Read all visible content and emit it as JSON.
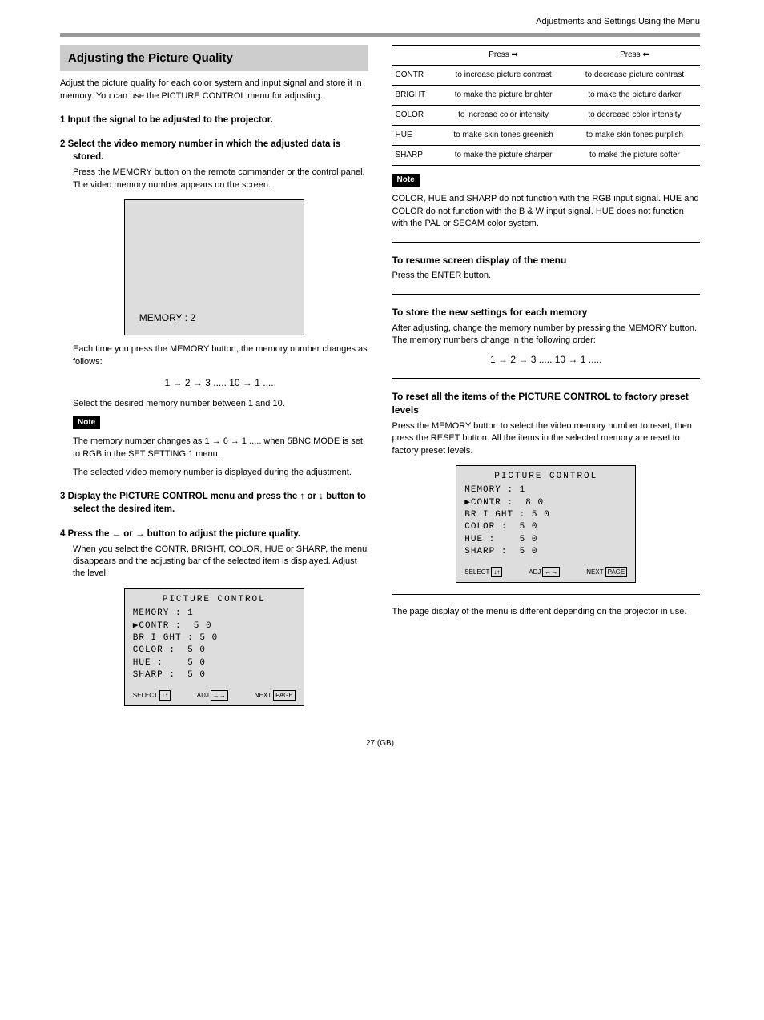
{
  "page_title": "Adjustments and Settings Using the Menu",
  "section_heading": "Adjusting the Picture Quality",
  "intro": "Adjust the picture quality for each color system and input signal and store it in memory. You can use the PICTURE CONTROL menu for adjusting.",
  "step1": "1  Input the signal to be adjusted to the projector.",
  "step2": "2  Select the video memory number in which the adjusted data is stored.",
  "step2_body1": "Press the MEMORY button on the remote commander or the control panel. The video memory number appears on the screen.",
  "screen1_text": "MEMORY : 2",
  "step2_body2": "Each time you press the MEMORY button, the memory number changes as follows:",
  "seq1": "1 → 2 → 3 ..... 10 → 1 .....",
  "step2_body3": "Select the desired memory number between 1 and 10.",
  "note1_label": "Note",
  "note1_body": "The memory number changes as 1 → 6 → 1 ..... when 5BNC MODE is set to RGB in the SET SETTING 1 menu.",
  "step2_body4": "The selected video memory number is displayed during the adjustment.",
  "step3": "3  Display the PICTURE CONTROL menu and press the ↑ or ↓ button to select the desired item.",
  "step4": "4  Press the ← or → button to adjust the picture quality.",
  "step4_body": "When you select the CONTR, BRIGHT, COLOR, HUE or SHARP, the menu disappears and the adjusting bar of the selected item is displayed. Adjust the level.",
  "screen2": {
    "title": "PICTURE CONTROL",
    "rows": [
      "MEMORY : 1",
      "CONTR :  5 0",
      "BR I GHT : 5 0",
      "COLOR :  5 0",
      "HUE :    5 0",
      "SHARP :  5 0"
    ],
    "footer": {
      "select": "SELECT",
      "adj": "ADJ",
      "next": "NEXT",
      "page": "PAGE"
    }
  },
  "table": {
    "head": [
      "",
      "Press →",
      "Press ←"
    ],
    "rows": [
      [
        "CONTR",
        "to increase picture contrast",
        "to decrease picture contrast"
      ],
      [
        "BRIGHT",
        "to make the picture brighter",
        "to make the picture darker"
      ],
      [
        "COLOR",
        "to increase color intensity",
        "to decrease color intensity"
      ],
      [
        "HUE",
        "to make skin tones greenish",
        "to make skin tones purplish"
      ],
      [
        "SHARP",
        "to make the picture sharper",
        "to make the picture softer"
      ]
    ]
  },
  "note2_label": "Note",
  "note2_body": "COLOR, HUE and SHARP do not function with the RGB input signal. HUE and COLOR do not function with the B & W input signal. HUE does not function with the PAL or SECAM color system.",
  "resume_h": "To resume screen display of the menu",
  "resume_body": "Press the ENTER button.",
  "store_h": "To store the new settings for each memory",
  "store_body1": "After adjusting, change the memory number by pressing the MEMORY button. The memory numbers change in the following order:",
  "seq2": "1 → 2 → 3 ..... 10 → 1 .....",
  "resetall_h": "To reset all the items of the PICTURE CONTROL to factory preset levels",
  "resetall_body": "Press the MEMORY button to select the video memory number to reset, then press the RESET button. All the items in the selected memory are reset to factory preset levels.",
  "screen3": {
    "title": "PICTURE CONTROL",
    "rows": [
      "MEMORY : 1",
      "CONTR :  8 0",
      "BR I GHT : 5 0",
      "COLOR :  5 0",
      "HUE :    5 0",
      "SHARP :  5 0"
    ],
    "footer": {
      "select": "SELECT",
      "adj": "ADJ",
      "next": "NEXT",
      "page": "PAGE"
    }
  },
  "note3_body": "The page display of the menu is different depending on the projector in use.",
  "pagenum": "27 (GB)"
}
